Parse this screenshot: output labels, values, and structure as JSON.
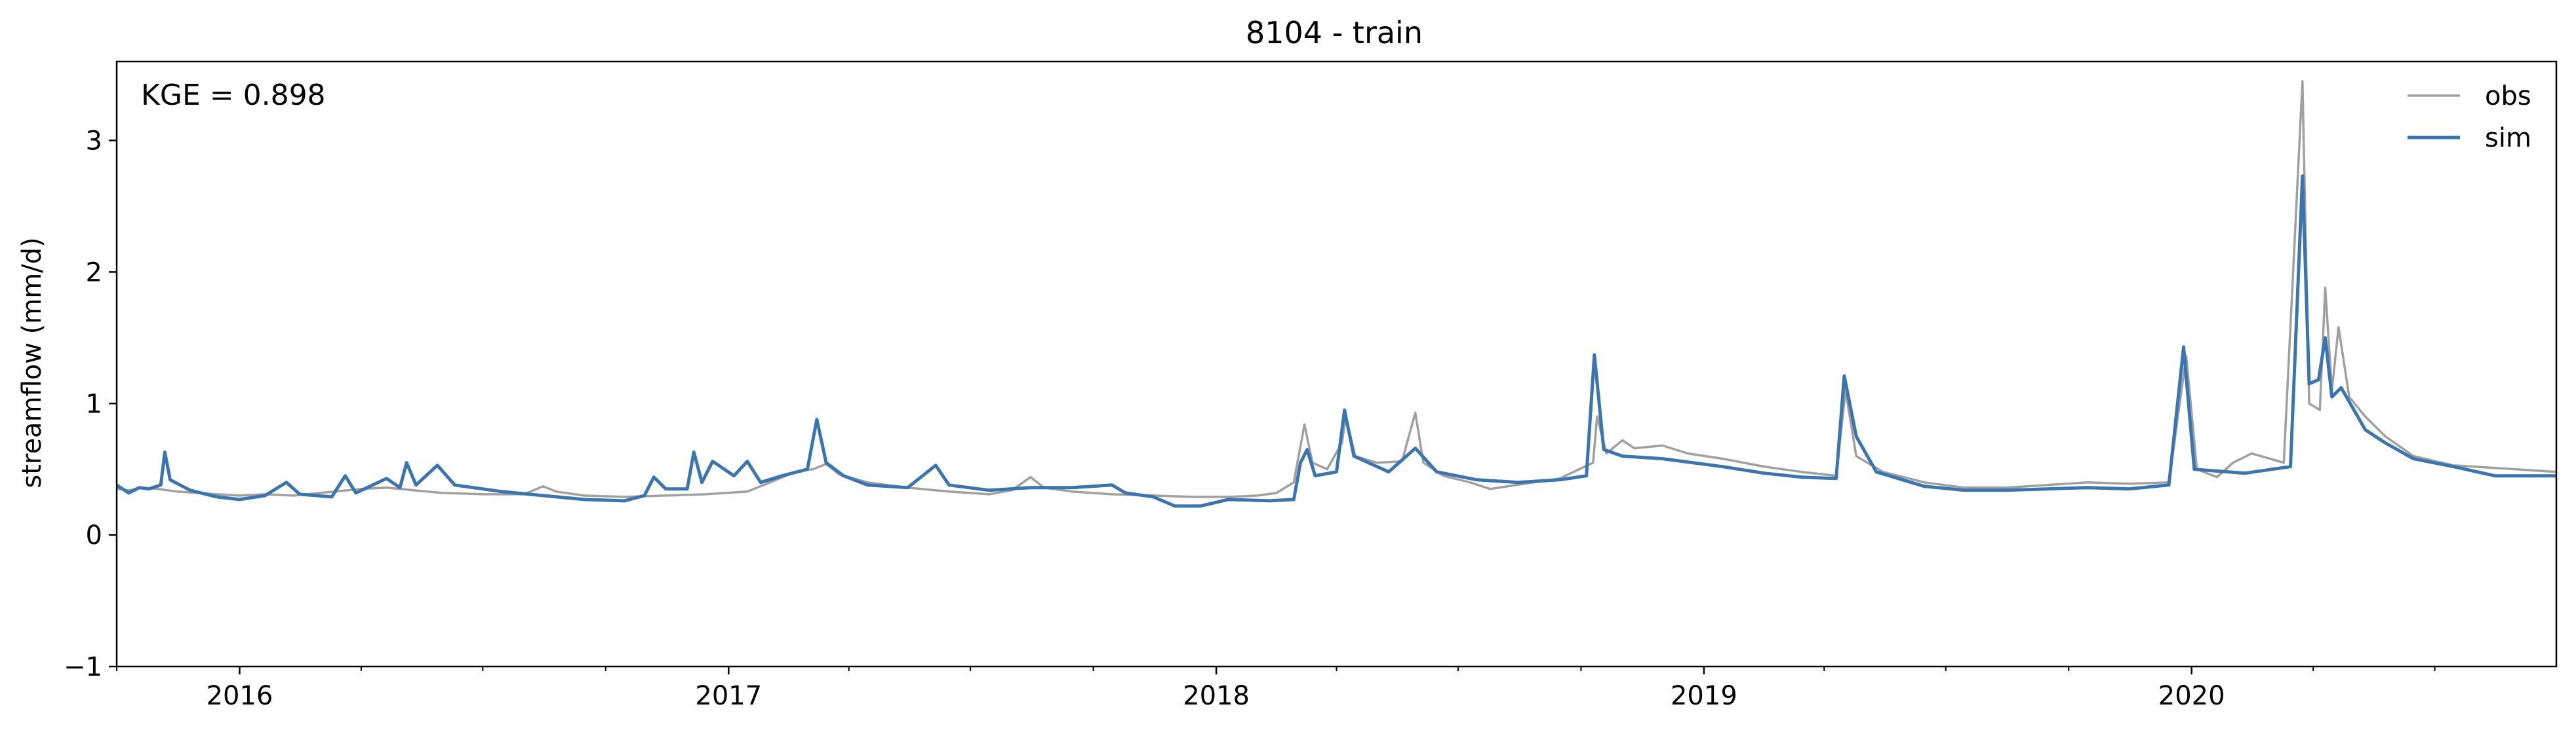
{
  "chart_data": {
    "type": "line",
    "title": "8104 - train",
    "ylabel": "streamflow (mm/d)",
    "xlabel": "",
    "annotation": "KGE = 0.898",
    "xlim": [
      "2015-10-01",
      "2020-09-30"
    ],
    "ylim": [
      -1,
      3.6
    ],
    "yticks": [
      -1,
      0,
      1,
      2,
      3
    ],
    "xticks": [
      {
        "date": "2016-01-01",
        "label": "2016"
      },
      {
        "date": "2017-01-01",
        "label": "2017"
      },
      {
        "date": "2018-01-01",
        "label": "2018"
      },
      {
        "date": "2019-01-01",
        "label": "2019"
      },
      {
        "date": "2020-01-01",
        "label": "2020"
      }
    ],
    "grid": false,
    "legend_position": "top-right",
    "series": [
      {
        "name": "obs",
        "color": "#a0a0a0",
        "points": [
          [
            "2015-10-01",
            0.35
          ],
          [
            "2015-10-10",
            0.34
          ],
          [
            "2015-10-20",
            0.36
          ],
          [
            "2015-11-01",
            0.35
          ],
          [
            "2015-11-15",
            0.33
          ],
          [
            "2015-12-01",
            0.32
          ],
          [
            "2015-12-15",
            0.31
          ],
          [
            "2016-01-01",
            0.3
          ],
          [
            "2016-01-20",
            0.31
          ],
          [
            "2016-02-10",
            0.3
          ],
          [
            "2016-03-01",
            0.32
          ],
          [
            "2016-04-01",
            0.35
          ],
          [
            "2016-04-20",
            0.36
          ],
          [
            "2016-05-10",
            0.34
          ],
          [
            "2016-06-01",
            0.32
          ],
          [
            "2016-07-01",
            0.31
          ],
          [
            "2016-08-01",
            0.31
          ],
          [
            "2016-08-15",
            0.37
          ],
          [
            "2016-08-25",
            0.33
          ],
          [
            "2016-09-15",
            0.3
          ],
          [
            "2016-10-15",
            0.29
          ],
          [
            "2016-11-15",
            0.3
          ],
          [
            "2016-12-15",
            0.31
          ],
          [
            "2017-01-15",
            0.33
          ],
          [
            "2017-02-01",
            0.4
          ],
          [
            "2017-02-20",
            0.48
          ],
          [
            "2017-03-05",
            0.5
          ],
          [
            "2017-03-15",
            0.54
          ],
          [
            "2017-03-25",
            0.46
          ],
          [
            "2017-04-15",
            0.4
          ],
          [
            "2017-05-15",
            0.36
          ],
          [
            "2017-06-15",
            0.33
          ],
          [
            "2017-07-15",
            0.31
          ],
          [
            "2017-08-01",
            0.34
          ],
          [
            "2017-08-15",
            0.44
          ],
          [
            "2017-08-25",
            0.36
          ],
          [
            "2017-09-15",
            0.33
          ],
          [
            "2017-10-15",
            0.31
          ],
          [
            "2017-11-15",
            0.3
          ],
          [
            "2017-12-15",
            0.29
          ],
          [
            "2018-01-10",
            0.29
          ],
          [
            "2018-02-01",
            0.3
          ],
          [
            "2018-02-15",
            0.32
          ],
          [
            "2018-02-28",
            0.4
          ],
          [
            "2018-03-08",
            0.84
          ],
          [
            "2018-03-14",
            0.55
          ],
          [
            "2018-03-25",
            0.5
          ],
          [
            "2018-04-05",
            0.7
          ],
          [
            "2018-04-08",
            0.9
          ],
          [
            "2018-04-15",
            0.6
          ],
          [
            "2018-05-01",
            0.55
          ],
          [
            "2018-05-20",
            0.56
          ],
          [
            "2018-05-30",
            0.93
          ],
          [
            "2018-06-05",
            0.55
          ],
          [
            "2018-06-20",
            0.45
          ],
          [
            "2018-07-10",
            0.4
          ],
          [
            "2018-07-25",
            0.35
          ],
          [
            "2018-08-20",
            0.39
          ],
          [
            "2018-09-15",
            0.43
          ],
          [
            "2018-10-10",
            0.55
          ],
          [
            "2018-10-13",
            0.9
          ],
          [
            "2018-10-20",
            0.62
          ],
          [
            "2018-11-01",
            0.72
          ],
          [
            "2018-11-10",
            0.66
          ],
          [
            "2018-12-01",
            0.68
          ],
          [
            "2018-12-20",
            0.62
          ],
          [
            "2019-01-15",
            0.58
          ],
          [
            "2019-02-15",
            0.52
          ],
          [
            "2019-03-15",
            0.48
          ],
          [
            "2019-04-10",
            0.45
          ],
          [
            "2019-04-17",
            1.1
          ],
          [
            "2019-04-25",
            0.6
          ],
          [
            "2019-05-15",
            0.48
          ],
          [
            "2019-06-15",
            0.4
          ],
          [
            "2019-07-15",
            0.36
          ],
          [
            "2019-08-15",
            0.36
          ],
          [
            "2019-09-15",
            0.38
          ],
          [
            "2019-10-15",
            0.4
          ],
          [
            "2019-11-15",
            0.39
          ],
          [
            "2019-12-15",
            0.4
          ],
          [
            "2019-12-28",
            1.36
          ],
          [
            "2020-01-05",
            0.5
          ],
          [
            "2020-01-20",
            0.44
          ],
          [
            "2020-02-01",
            0.55
          ],
          [
            "2020-02-15",
            0.62
          ],
          [
            "2020-03-10",
            0.55
          ],
          [
            "2020-03-24",
            3.45
          ],
          [
            "2020-03-29",
            1.0
          ],
          [
            "2020-04-06",
            0.95
          ],
          [
            "2020-04-10",
            1.88
          ],
          [
            "2020-04-15",
            1.1
          ],
          [
            "2020-04-20",
            1.58
          ],
          [
            "2020-04-28",
            1.05
          ],
          [
            "2020-05-10",
            0.9
          ],
          [
            "2020-05-25",
            0.75
          ],
          [
            "2020-06-15",
            0.6
          ],
          [
            "2020-07-15",
            0.53
          ],
          [
            "2020-08-15",
            0.51
          ],
          [
            "2020-09-30",
            0.48
          ]
        ]
      },
      {
        "name": "sim",
        "color": "#3b75af",
        "points": [
          [
            "2015-10-01",
            0.38
          ],
          [
            "2015-10-10",
            0.32
          ],
          [
            "2015-10-18",
            0.36
          ],
          [
            "2015-10-25",
            0.35
          ],
          [
            "2015-11-03",
            0.38
          ],
          [
            "2015-11-06",
            0.63
          ],
          [
            "2015-11-10",
            0.42
          ],
          [
            "2015-11-25",
            0.34
          ],
          [
            "2015-12-15",
            0.29
          ],
          [
            "2016-01-01",
            0.27
          ],
          [
            "2016-01-20",
            0.3
          ],
          [
            "2016-02-05",
            0.4
          ],
          [
            "2016-02-15",
            0.31
          ],
          [
            "2016-03-10",
            0.29
          ],
          [
            "2016-03-20",
            0.45
          ],
          [
            "2016-03-28",
            0.32
          ],
          [
            "2016-04-20",
            0.43
          ],
          [
            "2016-04-30",
            0.36
          ],
          [
            "2016-05-05",
            0.55
          ],
          [
            "2016-05-12",
            0.38
          ],
          [
            "2016-05-28",
            0.53
          ],
          [
            "2016-06-10",
            0.38
          ],
          [
            "2016-07-15",
            0.33
          ],
          [
            "2016-08-15",
            0.3
          ],
          [
            "2016-09-15",
            0.27
          ],
          [
            "2016-10-15",
            0.26
          ],
          [
            "2016-10-30",
            0.3
          ],
          [
            "2016-11-06",
            0.44
          ],
          [
            "2016-11-15",
            0.35
          ],
          [
            "2016-12-01",
            0.35
          ],
          [
            "2016-12-06",
            0.63
          ],
          [
            "2016-12-12",
            0.4
          ],
          [
            "2016-12-20",
            0.56
          ],
          [
            "2017-01-05",
            0.45
          ],
          [
            "2017-01-15",
            0.56
          ],
          [
            "2017-01-25",
            0.4
          ],
          [
            "2017-02-10",
            0.45
          ],
          [
            "2017-03-01",
            0.5
          ],
          [
            "2017-03-08",
            0.88
          ],
          [
            "2017-03-15",
            0.55
          ],
          [
            "2017-03-28",
            0.45
          ],
          [
            "2017-04-15",
            0.38
          ],
          [
            "2017-05-15",
            0.36
          ],
          [
            "2017-06-05",
            0.53
          ],
          [
            "2017-06-15",
            0.38
          ],
          [
            "2017-07-15",
            0.34
          ],
          [
            "2017-08-15",
            0.36
          ],
          [
            "2017-09-15",
            0.36
          ],
          [
            "2017-10-15",
            0.38
          ],
          [
            "2017-10-25",
            0.32
          ],
          [
            "2017-11-15",
            0.29
          ],
          [
            "2017-12-01",
            0.22
          ],
          [
            "2017-12-20",
            0.22
          ],
          [
            "2018-01-10",
            0.27
          ],
          [
            "2018-02-10",
            0.26
          ],
          [
            "2018-02-28",
            0.27
          ],
          [
            "2018-03-05",
            0.55
          ],
          [
            "2018-03-10",
            0.65
          ],
          [
            "2018-03-16",
            0.45
          ],
          [
            "2018-04-01",
            0.48
          ],
          [
            "2018-04-07",
            0.95
          ],
          [
            "2018-04-14",
            0.6
          ],
          [
            "2018-05-10",
            0.48
          ],
          [
            "2018-05-30",
            0.66
          ],
          [
            "2018-06-15",
            0.48
          ],
          [
            "2018-07-15",
            0.42
          ],
          [
            "2018-08-15",
            0.4
          ],
          [
            "2018-09-15",
            0.42
          ],
          [
            "2018-10-05",
            0.45
          ],
          [
            "2018-10-11",
            1.37
          ],
          [
            "2018-10-18",
            0.65
          ],
          [
            "2018-11-01",
            0.6
          ],
          [
            "2018-12-01",
            0.58
          ],
          [
            "2019-01-15",
            0.52
          ],
          [
            "2019-02-15",
            0.47
          ],
          [
            "2019-03-15",
            0.44
          ],
          [
            "2019-04-10",
            0.43
          ],
          [
            "2019-04-16",
            1.21
          ],
          [
            "2019-04-25",
            0.75
          ],
          [
            "2019-05-10",
            0.48
          ],
          [
            "2019-06-15",
            0.37
          ],
          [
            "2019-07-15",
            0.34
          ],
          [
            "2019-08-15",
            0.34
          ],
          [
            "2019-09-15",
            0.35
          ],
          [
            "2019-10-15",
            0.36
          ],
          [
            "2019-11-15",
            0.35
          ],
          [
            "2019-12-15",
            0.38
          ],
          [
            "2019-12-26",
            1.43
          ],
          [
            "2020-01-03",
            0.5
          ],
          [
            "2020-02-10",
            0.47
          ],
          [
            "2020-03-15",
            0.52
          ],
          [
            "2020-03-24",
            2.73
          ],
          [
            "2020-03-29",
            1.15
          ],
          [
            "2020-04-05",
            1.18
          ],
          [
            "2020-04-10",
            1.5
          ],
          [
            "2020-04-15",
            1.05
          ],
          [
            "2020-04-22",
            1.12
          ],
          [
            "2020-05-10",
            0.8
          ],
          [
            "2020-05-25",
            0.7
          ],
          [
            "2020-06-15",
            0.58
          ],
          [
            "2020-07-15",
            0.52
          ],
          [
            "2020-08-15",
            0.45
          ],
          [
            "2020-09-30",
            0.45
          ]
        ]
      }
    ]
  }
}
